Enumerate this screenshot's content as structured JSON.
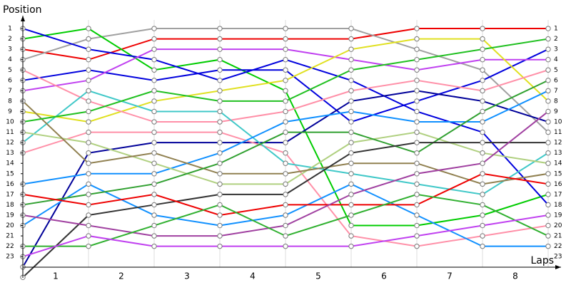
{
  "chart_data": {
    "type": "line",
    "y_label": "Position",
    "x_label": "Laps",
    "x": [
      0,
      1,
      2,
      3,
      4,
      5,
      6,
      7,
      8
    ],
    "xlim": [
      0,
      8
    ],
    "xticks": [
      {
        "value": 0.5,
        "label": "1"
      },
      {
        "value": 1.5,
        "label": "2"
      },
      {
        "value": 2.5,
        "label": "3"
      },
      {
        "value": 3.5,
        "label": "4"
      },
      {
        "value": 4.5,
        "label": "5"
      },
      {
        "value": 5.5,
        "label": "6"
      },
      {
        "value": 6.5,
        "label": "7"
      },
      {
        "value": 7.5,
        "label": "8"
      }
    ],
    "ylim": [
      25,
      0
    ],
    "yticks": [
      1,
      2,
      3,
      4,
      5,
      6,
      7,
      8,
      9,
      10,
      11,
      12,
      13,
      14,
      15,
      16,
      17,
      18,
      19,
      20,
      21,
      22,
      23
    ],
    "series": [
      {
        "color": "#ee0000",
        "values": [
          3,
          4,
          2,
          2,
          2,
          2,
          1,
          1,
          1
        ]
      },
      {
        "color": "#a0a0a0",
        "values": [
          4,
          2,
          1,
          1,
          1,
          1,
          3,
          5,
          11
        ]
      },
      {
        "color": "#00cc00",
        "values": [
          2,
          1,
          5,
          4,
          7,
          20,
          20,
          19,
          17
        ]
      },
      {
        "color": "#0000dd",
        "values": [
          1,
          3,
          4,
          6,
          4,
          6,
          9,
          11,
          18
        ]
      },
      {
        "color": "#0000dd",
        "values": [
          6,
          5,
          6,
          5,
          5,
          10,
          8,
          6,
          3
        ]
      },
      {
        "color": "#000099",
        "values": [
          24,
          13,
          12,
          12,
          12,
          8,
          7,
          8,
          10
        ]
      },
      {
        "color": "#c040f0",
        "values": [
          7,
          6,
          3,
          3,
          3,
          4,
          5,
          4,
          4
        ]
      },
      {
        "color": "#e0e020",
        "values": [
          9,
          10,
          8,
          7,
          6,
          3,
          2,
          2,
          8
        ]
      },
      {
        "color": "#ff90a8",
        "values": [
          5,
          8,
          10,
          10,
          9,
          7,
          6,
          7,
          5
        ]
      },
      {
        "color": "#ff90a8",
        "values": [
          13,
          11,
          11,
          11,
          13,
          21,
          22,
          21,
          20
        ]
      },
      {
        "color": "#40c8c8",
        "values": [
          12,
          7,
          9,
          9,
          14,
          15,
          16,
          17,
          13
        ]
      },
      {
        "color": "#1090ff",
        "values": [
          16,
          15,
          15,
          13,
          10,
          9,
          10,
          10,
          7
        ]
      },
      {
        "color": "#1090ff",
        "values": [
          20,
          16,
          19,
          20,
          19,
          16,
          19,
          22,
          22
        ]
      },
      {
        "color": "#b0d080",
        "values": [
          11,
          12,
          14,
          16,
          16,
          12,
          11,
          13,
          14
        ]
      },
      {
        "color": "#908050",
        "values": [
          8,
          14,
          13,
          15,
          15,
          14,
          14,
          16,
          15
        ]
      },
      {
        "color": "#30a030",
        "values": [
          18,
          17,
          16,
          14,
          11,
          11,
          13,
          9,
          6
        ]
      },
      {
        "color": "#20c020",
        "values": [
          10,
          9,
          7,
          8,
          8,
          5,
          4,
          3,
          2
        ]
      },
      {
        "color": "#333333",
        "values": [
          25,
          19,
          18,
          17,
          17,
          13,
          12,
          12,
          12
        ]
      },
      {
        "color": "#ee0000",
        "values": [
          17,
          18,
          17,
          19,
          18,
          18,
          18,
          15,
          16
        ]
      },
      {
        "color": "#a040a0",
        "values": [
          19,
          20,
          21,
          21,
          20,
          17,
          15,
          14,
          9
        ]
      },
      {
        "color": "#30b030",
        "values": [
          22,
          22,
          20,
          18,
          21,
          19,
          17,
          18,
          21
        ]
      },
      {
        "color": "#c040f0",
        "values": [
          23,
          21,
          22,
          22,
          22,
          22,
          21,
          20,
          19
        ]
      }
    ]
  }
}
